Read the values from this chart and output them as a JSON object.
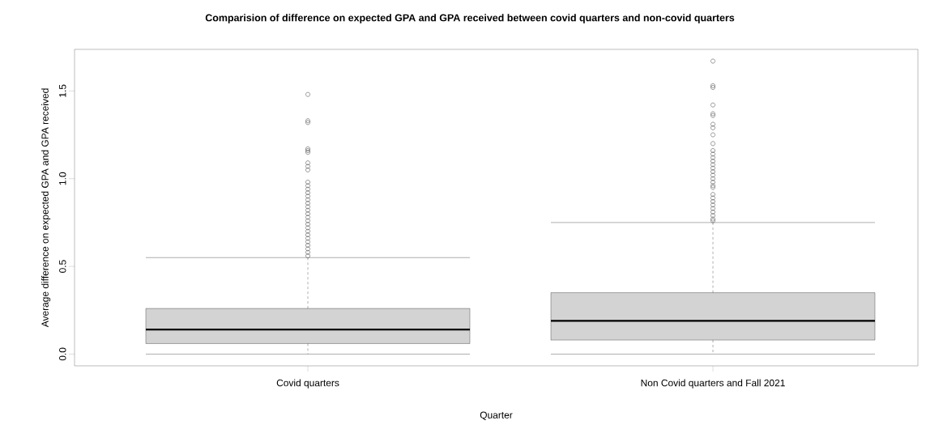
{
  "chart_data": {
    "type": "box",
    "title": "Comparision of difference on expected GPA and GPA received between covid quarters and non-covid quarters",
    "xlabel": "Quarter",
    "ylabel": "Average difference on expected GPA and GPA received",
    "categories": [
      "Covid quarters",
      "Non Covid quarters and Fall 2021"
    ],
    "color": "#d3d3d3",
    "marker": "circle",
    "boxes": [
      {
        "low": 0,
        "q1": 0.06,
        "median": 0.14,
        "q3": 0.26,
        "high": 0.55,
        "outliers": [
          1.48,
          1.33,
          1.32,
          1.17,
          1.16,
          1.15,
          1.09,
          1.07,
          1.05,
          0.98,
          0.96,
          0.94,
          0.92,
          0.9,
          0.88,
          0.86,
          0.84,
          0.82,
          0.8,
          0.78,
          0.76,
          0.74,
          0.72,
          0.7,
          0.68,
          0.66,
          0.64,
          0.62,
          0.6,
          0.58,
          0.56
        ]
      },
      {
        "low": 0,
        "q1": 0.08,
        "median": 0.19,
        "q3": 0.35,
        "high": 0.75,
        "outliers": [
          1.67,
          1.53,
          1.52,
          1.42,
          1.37,
          1.36,
          1.31,
          1.29,
          1.25,
          1.2,
          1.16,
          1.14,
          1.12,
          1.1,
          1.08,
          1.06,
          1.04,
          1.02,
          1.0,
          0.98,
          0.96,
          0.95,
          0.91,
          0.89,
          0.87,
          0.85,
          0.83,
          0.81,
          0.79,
          0.77,
          0.76
        ]
      }
    ],
    "ylim": [
      -0.067,
      1.737
    ],
    "yticks": [
      {
        "value": 0,
        "label": "0.0"
      },
      {
        "value": 0.5,
        "label": "0.5"
      },
      {
        "value": 1,
        "label": "1.0"
      },
      {
        "value": 1.5,
        "label": "1.5"
      }
    ]
  }
}
